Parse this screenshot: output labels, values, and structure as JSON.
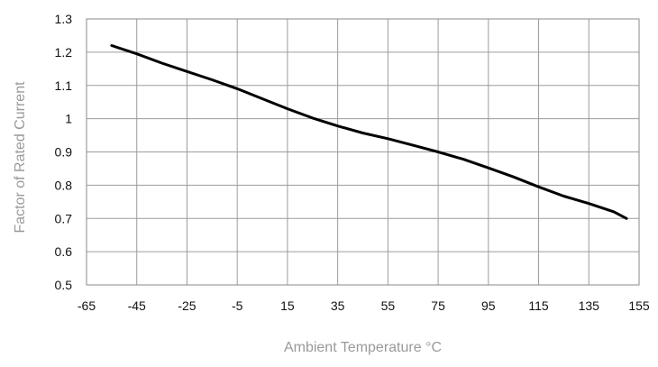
{
  "chart_data": {
    "type": "line",
    "title": "",
    "xlabel": "Ambient Temperature °C",
    "ylabel": "Factor of  Rated Current",
    "xlim": [
      -65,
      155
    ],
    "ylim": [
      0.5,
      1.3
    ],
    "grid": true,
    "x_ticks": [
      "-65",
      "-45",
      "-25",
      "-5",
      "15",
      "35",
      "55",
      "75",
      "95",
      "115",
      "135",
      "155"
    ],
    "y_ticks": [
      "1.3",
      "1.2",
      "1.1",
      "1",
      "0.9",
      "0.8",
      "0.7",
      "0.6",
      "0.5"
    ],
    "colors": {
      "line": "#000000",
      "grid": "#9c9c9c",
      "axis_title": "#9a9a9a",
      "tick_label": "#111111"
    },
    "series": [
      {
        "x": [
          -55,
          -45,
          -35,
          -25,
          -15,
          -5,
          5,
          15,
          25,
          35,
          45,
          55,
          65,
          75,
          85,
          95,
          105,
          115,
          125,
          135,
          145,
          150
        ],
        "y": [
          1.22,
          1.195,
          1.167,
          1.142,
          1.117,
          1.09,
          1.06,
          1.03,
          1.002,
          0.978,
          0.957,
          0.94,
          0.92,
          0.9,
          0.878,
          0.852,
          0.825,
          0.795,
          0.767,
          0.745,
          0.72,
          0.7
        ]
      }
    ]
  }
}
